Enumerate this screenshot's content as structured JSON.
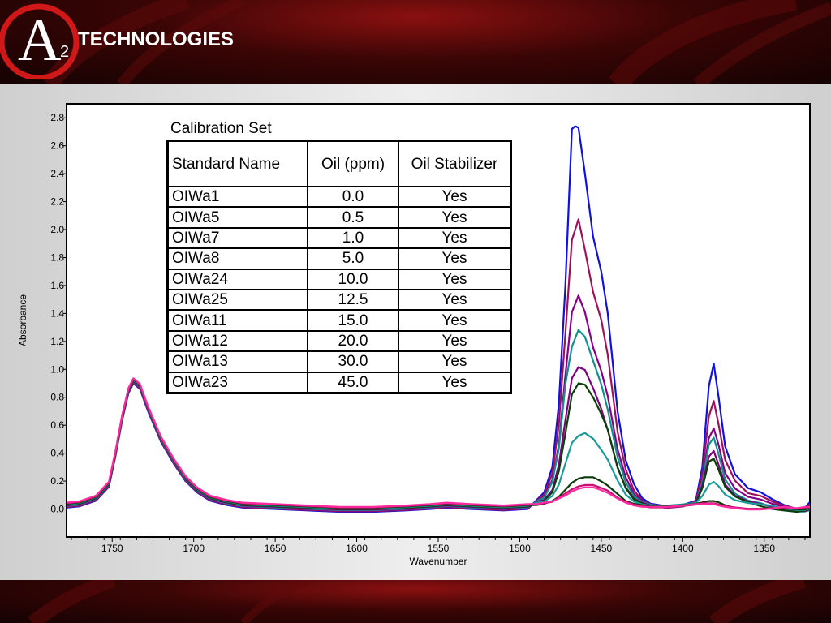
{
  "brand": {
    "logo_letter": "A",
    "logo_subscript": "2",
    "logo_text": "TECHNOLOGIES"
  },
  "table": {
    "title": "Calibration Set",
    "headers": [
      "Standard Name",
      "Oil (ppm)",
      "Oil Stabilizer"
    ],
    "rows": [
      [
        "OIWa1",
        "0.0",
        "Yes"
      ],
      [
        "OIWa5",
        "0.5",
        "Yes"
      ],
      [
        "OIWa7",
        "1.0",
        "Yes"
      ],
      [
        "OIWa8",
        "5.0",
        "Yes"
      ],
      [
        "OIWa24",
        "10.0",
        "Yes"
      ],
      [
        "OIWa25",
        "12.5",
        "Yes"
      ],
      [
        "OIWa11",
        "15.0",
        "Yes"
      ],
      [
        "OIWa12",
        "20.0",
        "Yes"
      ],
      [
        "OIWa13",
        "30.0",
        "Yes"
      ],
      [
        "OIWa23",
        "45.0",
        "Yes"
      ]
    ]
  },
  "chart_data": {
    "type": "line",
    "title": "",
    "xlabel": "Wavenumber",
    "ylabel": "Absorbance",
    "xlim": [
      1778,
      1322
    ],
    "ylim": [
      -0.2,
      2.9
    ],
    "x_reversed": true,
    "x_ticks": [
      1750,
      1700,
      1650,
      1600,
      1550,
      1500,
      1450,
      1400,
      1350
    ],
    "y_ticks": [
      0.0,
      0.2,
      0.4,
      0.6,
      0.8,
      1.0,
      1.2,
      1.4,
      1.6,
      1.8,
      2.0,
      2.2,
      2.4,
      2.6,
      2.8
    ],
    "grid": false,
    "legend": "none",
    "base_band": {
      "x": [
        1778,
        1770,
        1760,
        1752,
        1748,
        1744,
        1740,
        1737,
        1733,
        1728,
        1720,
        1712,
        1705,
        1698,
        1690,
        1680,
        1670,
        1650,
        1630,
        1610,
        1590,
        1570,
        1555,
        1545,
        1530,
        1510,
        1495
      ],
      "y": [
        0.01,
        0.02,
        0.06,
        0.16,
        0.38,
        0.63,
        0.83,
        0.9,
        0.86,
        0.7,
        0.48,
        0.32,
        0.2,
        0.12,
        0.06,
        0.03,
        0.01,
        0.0,
        -0.01,
        -0.02,
        -0.02,
        -0.01,
        0.0,
        0.01,
        0.0,
        -0.01,
        0.0
      ]
    },
    "series": [
      {
        "color": "#1010e0",
        "x": [
          1495,
          1490,
          1485,
          1480,
          1476,
          1472,
          1468,
          1466,
          1464,
          1460,
          1455,
          1450,
          1446,
          1440,
          1435,
          1430,
          1425,
          1420,
          1410,
          1400,
          1392,
          1388,
          1384,
          1381,
          1378,
          1374,
          1368,
          1360,
          1352,
          1345,
          1338,
          1330,
          1325,
          1322
        ],
        "y": [
          0.03,
          0.06,
          0.12,
          0.3,
          0.75,
          1.6,
          2.72,
          2.74,
          2.73,
          2.4,
          1.95,
          1.7,
          1.4,
          0.7,
          0.35,
          0.18,
          0.08,
          0.04,
          0.02,
          0.03,
          0.06,
          0.3,
          0.88,
          1.04,
          0.8,
          0.45,
          0.25,
          0.15,
          0.12,
          0.07,
          0.03,
          0.0,
          0.01,
          0.05
        ]
      },
      {
        "color": "#a0105a",
        "x": [
          1495,
          1490,
          1485,
          1480,
          1476,
          1472,
          1468,
          1464,
          1460,
          1455,
          1450,
          1446,
          1440,
          1435,
          1430,
          1425,
          1420,
          1410,
          1400,
          1392,
          1388,
          1384,
          1381,
          1378,
          1374,
          1368,
          1360,
          1352,
          1345,
          1338,
          1330,
          1325,
          1322
        ],
        "y": [
          0.02,
          0.05,
          0.1,
          0.25,
          0.6,
          1.25,
          1.92,
          2.07,
          1.85,
          1.55,
          1.35,
          1.1,
          0.55,
          0.28,
          0.13,
          0.06,
          0.03,
          0.01,
          0.02,
          0.05,
          0.25,
          0.66,
          0.77,
          0.6,
          0.35,
          0.2,
          0.11,
          0.09,
          0.05,
          0.02,
          0.0,
          0.0,
          0.03
        ]
      },
      {
        "color": "#880088",
        "x": [
          1495,
          1490,
          1485,
          1480,
          1476,
          1472,
          1468,
          1464,
          1460,
          1455,
          1450,
          1446,
          1440,
          1435,
          1430,
          1425,
          1420,
          1410,
          1400,
          1392,
          1388,
          1384,
          1381,
          1378,
          1374,
          1368,
          1360,
          1352,
          1345,
          1338,
          1330,
          1325,
          1322
        ],
        "y": [
          0.02,
          0.04,
          0.08,
          0.2,
          0.45,
          0.95,
          1.4,
          1.52,
          1.4,
          1.15,
          0.98,
          0.8,
          0.42,
          0.22,
          0.1,
          0.05,
          0.02,
          0.0,
          0.01,
          0.04,
          0.2,
          0.5,
          0.57,
          0.45,
          0.25,
          0.14,
          0.08,
          0.06,
          0.03,
          0.01,
          -0.01,
          -0.01,
          0.0
        ]
      },
      {
        "color": "#109090",
        "x": [
          1495,
          1490,
          1485,
          1480,
          1476,
          1472,
          1468,
          1464,
          1460,
          1455,
          1450,
          1446,
          1440,
          1435,
          1430,
          1425,
          1420,
          1410,
          1400,
          1392,
          1388,
          1384,
          1381,
          1378,
          1374,
          1368,
          1360,
          1352,
          1345,
          1338,
          1330,
          1325,
          1322
        ],
        "y": [
          0.02,
          0.04,
          0.07,
          0.18,
          0.42,
          0.88,
          1.15,
          1.27,
          1.22,
          1.05,
          0.88,
          0.7,
          0.36,
          0.18,
          0.08,
          0.04,
          0.02,
          0.0,
          0.01,
          0.03,
          0.18,
          0.45,
          0.5,
          0.38,
          0.2,
          0.1,
          0.05,
          0.03,
          0.0,
          -0.02,
          -0.03,
          -0.03,
          -0.02
        ]
      },
      {
        "color": "#800080",
        "x": [
          1495,
          1490,
          1485,
          1480,
          1476,
          1472,
          1468,
          1464,
          1460,
          1455,
          1450,
          1446,
          1440,
          1435,
          1430,
          1425,
          1420,
          1410,
          1400,
          1392,
          1388,
          1384,
          1381,
          1378,
          1374,
          1368,
          1360,
          1352,
          1345,
          1338,
          1330,
          1325,
          1322
        ],
        "y": [
          0.01,
          0.03,
          0.05,
          0.12,
          0.3,
          0.62,
          0.92,
          1.0,
          0.98,
          0.85,
          0.7,
          0.55,
          0.28,
          0.14,
          0.06,
          0.03,
          0.01,
          0.0,
          0.01,
          0.03,
          0.15,
          0.36,
          0.4,
          0.3,
          0.16,
          0.08,
          0.04,
          0.02,
          0.0,
          -0.02,
          -0.03,
          -0.03,
          -0.02
        ]
      },
      {
        "color": "#084008",
        "x": [
          1495,
          1490,
          1485,
          1480,
          1476,
          1472,
          1468,
          1464,
          1460,
          1455,
          1450,
          1446,
          1440,
          1435,
          1430,
          1425,
          1420,
          1410,
          1400,
          1392,
          1388,
          1384,
          1381,
          1378,
          1374,
          1368,
          1360,
          1352,
          1345,
          1338,
          1330,
          1325,
          1322
        ],
        "y": [
          0.01,
          0.02,
          0.04,
          0.1,
          0.25,
          0.52,
          0.8,
          0.88,
          0.87,
          0.78,
          0.66,
          0.55,
          0.28,
          0.13,
          0.05,
          0.02,
          0.0,
          0.0,
          0.01,
          0.02,
          0.13,
          0.32,
          0.34,
          0.26,
          0.14,
          0.07,
          0.03,
          0.0,
          -0.02,
          -0.03,
          -0.04,
          -0.03,
          -0.02
        ]
      },
      {
        "color": "#1a9a9a",
        "x": [
          1495,
          1490,
          1485,
          1480,
          1476,
          1472,
          1468,
          1464,
          1460,
          1455,
          1450,
          1446,
          1440,
          1435,
          1430,
          1425,
          1420,
          1410,
          1400,
          1392,
          1388,
          1384,
          1381,
          1378,
          1374,
          1368,
          1360,
          1352,
          1345,
          1338,
          1330,
          1325,
          1322
        ],
        "y": [
          0.01,
          0.02,
          0.03,
          0.07,
          0.15,
          0.3,
          0.45,
          0.5,
          0.52,
          0.48,
          0.4,
          0.33,
          0.18,
          0.08,
          0.03,
          0.01,
          0.0,
          0.0,
          0.01,
          0.02,
          0.07,
          0.15,
          0.17,
          0.14,
          0.08,
          0.04,
          0.02,
          0.01,
          0.0,
          -0.02,
          -0.03,
          -0.03,
          -0.02
        ]
      },
      {
        "color": "#0a3a0a",
        "x": [
          1495,
          1490,
          1485,
          1480,
          1476,
          1472,
          1468,
          1464,
          1460,
          1455,
          1450,
          1446,
          1440,
          1435,
          1430,
          1425,
          1420,
          1410,
          1400,
          1392,
          1388,
          1384,
          1381,
          1378,
          1374,
          1368,
          1360,
          1352,
          1345,
          1338,
          1330,
          1325,
          1322
        ],
        "y": [
          0.0,
          0.0,
          0.01,
          0.03,
          0.06,
          0.11,
          0.16,
          0.19,
          0.2,
          0.2,
          0.17,
          0.14,
          0.08,
          0.03,
          0.01,
          0.0,
          -0.01,
          -0.01,
          0.0,
          0.01,
          0.02,
          0.03,
          0.03,
          0.02,
          0.0,
          -0.02,
          -0.03,
          -0.03,
          -0.02,
          -0.02,
          -0.03,
          -0.03,
          -0.02
        ]
      },
      {
        "color": "#c81070",
        "x": [
          1495,
          1490,
          1485,
          1480,
          1476,
          1472,
          1468,
          1464,
          1460,
          1455,
          1450,
          1446,
          1440,
          1435,
          1430,
          1425,
          1420,
          1410,
          1400,
          1392,
          1388,
          1384,
          1381,
          1378,
          1374,
          1368,
          1360,
          1352,
          1345,
          1338,
          1330,
          1325,
          1322
        ],
        "y": [
          0.0,
          0.0,
          0.01,
          0.02,
          0.05,
          0.08,
          0.11,
          0.13,
          0.14,
          0.14,
          0.12,
          0.1,
          0.05,
          0.02,
          0.0,
          -0.01,
          -0.02,
          -0.02,
          -0.01,
          0.0,
          0.01,
          0.01,
          0.01,
          0.0,
          -0.01,
          -0.02,
          -0.03,
          -0.03,
          -0.03,
          -0.02,
          -0.03,
          -0.02,
          -0.02
        ]
      },
      {
        "color": "#ff2aa0",
        "x": [
          1495,
          1490,
          1485,
          1480,
          1476,
          1472,
          1468,
          1464,
          1460,
          1455,
          1450,
          1446,
          1440,
          1435,
          1430,
          1425,
          1420,
          1410,
          1400,
          1392,
          1388,
          1384,
          1381,
          1378,
          1374,
          1368,
          1360,
          1352,
          1345,
          1338,
          1330,
          1325,
          1322
        ],
        "y": [
          0.0,
          0.0,
          0.01,
          0.02,
          0.04,
          0.06,
          0.09,
          0.11,
          0.12,
          0.12,
          0.1,
          0.08,
          0.04,
          0.01,
          -0.01,
          -0.02,
          -0.02,
          -0.02,
          -0.01,
          0.0,
          0.0,
          0.0,
          0.0,
          -0.01,
          -0.02,
          -0.03,
          -0.04,
          -0.04,
          -0.03,
          -0.02,
          -0.03,
          -0.02,
          -0.02
        ]
      }
    ]
  }
}
